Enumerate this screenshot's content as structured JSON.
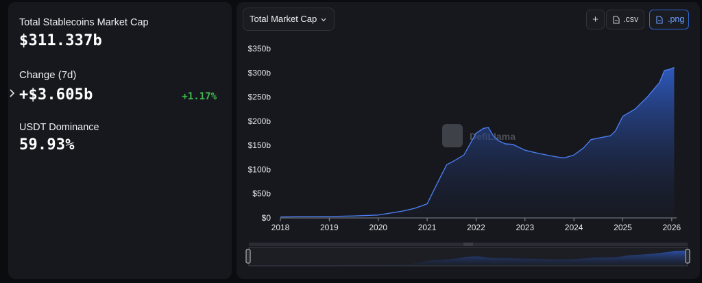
{
  "stats": {
    "total_label": "Total Stablecoins Market Cap",
    "total_value": "$311.337b",
    "change_label": "Change (7d)",
    "change_value": "+$3.605b",
    "change_percent": "+1.17%",
    "dominance_label": "USDT Dominance",
    "dominance_value": "59.93%"
  },
  "controls": {
    "dropdown_label": "Total Market Cap",
    "plus_label": "+",
    "csv_label": ".csv",
    "png_label": ".png"
  },
  "watermark": "DefiLlama",
  "colors": {
    "accent": "#3f6fd8",
    "positive": "#3fb950",
    "panel": "#17181d"
  },
  "chart_data": {
    "type": "area",
    "y_ticks": [
      "$350b",
      "$300b",
      "$250b",
      "$200b",
      "$150b",
      "$100b",
      "$50b",
      "$0"
    ],
    "x_ticks": [
      "2018",
      "2019",
      "2020",
      "2021",
      "2022",
      "2023",
      "2024",
      "2025",
      "2026"
    ],
    "ylim": [
      0,
      350
    ],
    "xlim": [
      2018.0,
      2026.1
    ],
    "series": [
      {
        "x": [
          2018.0,
          2018.5,
          2019.0,
          2019.5,
          2020.0,
          2020.25,
          2020.5,
          2020.75,
          2021.0,
          2021.15,
          2021.25,
          2021.4,
          2021.5,
          2021.75,
          2022.0,
          2022.15,
          2022.25,
          2022.35,
          2022.45,
          2022.6,
          2022.75,
          2023.0,
          2023.25,
          2023.5,
          2023.65,
          2023.8,
          2024.0,
          2024.2,
          2024.35,
          2024.5,
          2024.75,
          2024.85,
          2025.0,
          2025.25,
          2025.5,
          2025.75,
          2025.85,
          2025.95,
          2026.05
        ],
        "y": [
          2,
          2.5,
          3,
          4,
          6,
          10,
          14,
          20,
          29,
          60,
          80,
          110,
          115,
          130,
          175,
          185,
          187,
          170,
          160,
          153,
          152,
          140,
          134,
          129,
          126,
          124,
          130,
          145,
          162,
          165,
          170,
          180,
          210,
          225,
          250,
          280,
          305,
          307,
          311
        ]
      }
    ],
    "grid": false,
    "legend": "none"
  }
}
